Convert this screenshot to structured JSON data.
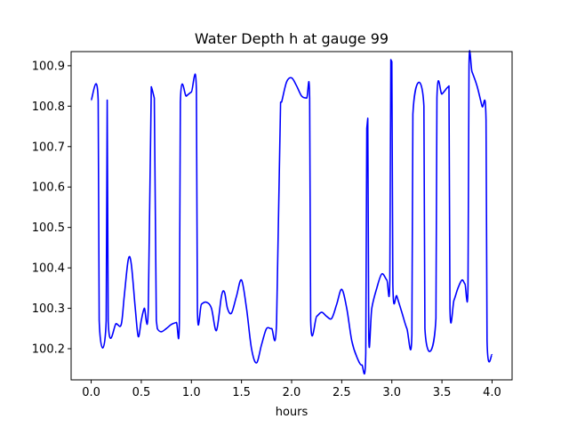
{
  "chart_data": {
    "type": "line",
    "title": "Water Depth h at gauge 99",
    "xlabel": "hours",
    "ylabel": "",
    "xlim": [
      -0.2,
      4.2
    ],
    "ylim": [
      100.123,
      100.935
    ],
    "xticks": [
      0.0,
      0.5,
      1.0,
      1.5,
      2.0,
      2.5,
      3.0,
      3.5,
      4.0
    ],
    "xtick_labels": [
      "0.0",
      "0.5",
      "1.0",
      "1.5",
      "2.0",
      "2.5",
      "3.0",
      "3.5",
      "4.0"
    ],
    "yticks": [
      100.2,
      100.3,
      100.4,
      100.5,
      100.6,
      100.7,
      100.8,
      100.9
    ],
    "ytick_labels": [
      "100.2",
      "100.3",
      "100.4",
      "100.5",
      "100.6",
      "100.7",
      "100.8",
      "100.9"
    ],
    "grid": false,
    "series": [
      {
        "color": "#0000ff",
        "x": [
          0.0,
          0.07,
          0.08,
          0.15,
          0.16,
          0.17,
          0.25,
          0.3,
          0.33,
          0.37,
          0.4,
          0.44,
          0.47,
          0.5,
          0.53,
          0.57,
          0.6,
          0.61,
          0.63,
          0.65,
          0.66,
          0.7,
          0.75,
          0.8,
          0.85,
          0.88,
          0.89,
          0.95,
          1.0,
          1.05,
          1.06,
          1.1,
          1.15,
          1.2,
          1.25,
          1.3,
          1.33,
          1.36,
          1.4,
          1.45,
          1.5,
          1.55,
          1.6,
          1.65,
          1.7,
          1.75,
          1.8,
          1.85,
          1.89,
          1.9,
          1.95,
          2.0,
          2.05,
          2.1,
          2.15,
          2.18,
          2.19,
          2.25,
          2.3,
          2.35,
          2.4,
          2.45,
          2.5,
          2.55,
          2.6,
          2.65,
          2.7,
          2.74,
          2.75,
          2.76,
          2.77,
          2.8,
          2.85,
          2.9,
          2.95,
          2.98,
          2.99,
          3.0,
          3.01,
          3.05,
          3.1,
          3.15,
          3.2,
          3.21,
          3.32,
          3.33,
          3.44,
          3.45,
          3.5,
          3.55,
          3.57,
          3.58,
          3.62,
          3.66,
          3.7,
          3.73,
          3.76,
          3.77,
          3.8,
          3.85,
          3.9,
          3.94,
          3.95,
          4.0
        ],
        "y": [
          100.815,
          100.815,
          100.27,
          100.27,
          100.815,
          100.268,
          100.262,
          100.26,
          100.33,
          100.42,
          100.41,
          100.3,
          100.23,
          100.27,
          100.3,
          100.3,
          100.848,
          100.84,
          100.82,
          100.27,
          100.25,
          100.242,
          100.25,
          100.26,
          100.265,
          100.265,
          100.81,
          100.825,
          100.835,
          100.84,
          100.295,
          100.31,
          100.315,
          100.3,
          100.245,
          100.33,
          100.34,
          100.3,
          100.288,
          100.33,
          100.37,
          100.3,
          100.2,
          100.165,
          100.21,
          100.25,
          100.25,
          100.265,
          100.81,
          100.81,
          100.86,
          100.87,
          100.85,
          100.825,
          100.82,
          100.82,
          100.27,
          100.28,
          100.29,
          100.28,
          100.275,
          100.31,
          100.347,
          100.3,
          100.22,
          100.18,
          100.16,
          100.19,
          100.745,
          100.77,
          100.228,
          100.3,
          100.35,
          100.385,
          100.37,
          100.37,
          100.915,
          100.91,
          100.36,
          100.33,
          100.29,
          100.25,
          100.235,
          100.78,
          100.8,
          100.25,
          100.275,
          100.82,
          100.83,
          100.845,
          100.85,
          100.3,
          100.32,
          100.35,
          100.37,
          100.36,
          100.355,
          100.9,
          100.885,
          100.85,
          100.8,
          100.765,
          100.22,
          100.185
        ]
      }
    ]
  }
}
